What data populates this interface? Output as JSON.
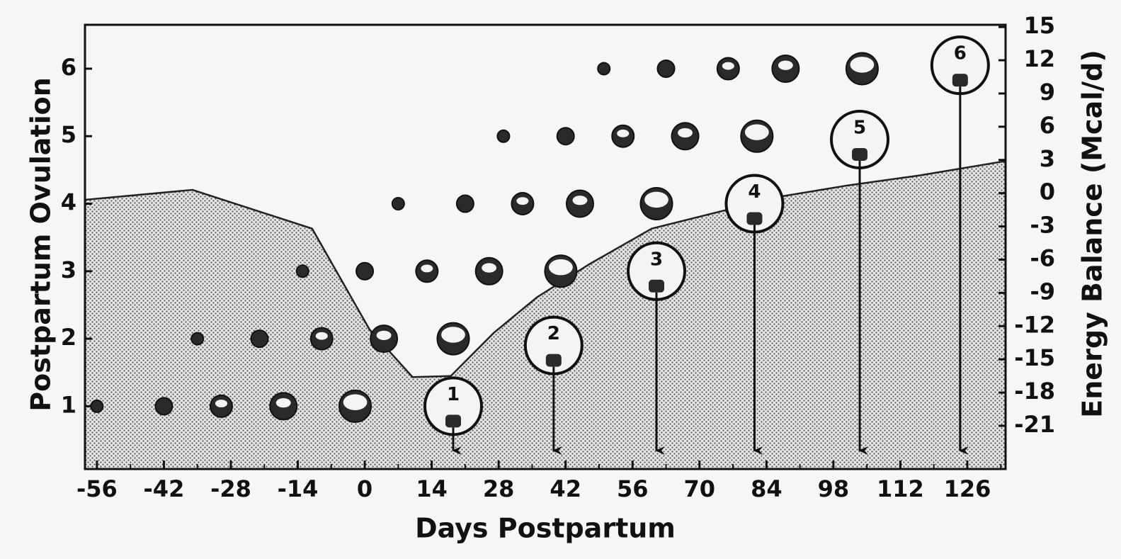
{
  "chart_data": {
    "type": "scatter",
    "x_label": "Days Postpartum",
    "y_label": "Postpartum Ovulation",
    "y2_label": "Energy Balance (Mcal/d)",
    "xlim": [
      -58.5,
      134
    ],
    "xticks": [
      -56,
      -42,
      -28,
      -14,
      0,
      14,
      28,
      42,
      56,
      70,
      84,
      98,
      112,
      126
    ],
    "ylim": [
      0.07,
      6.65
    ],
    "yticks": [
      1,
      2,
      3,
      4,
      5,
      6
    ],
    "y2lim": [
      -24.9,
      15.2
    ],
    "y2ticks": [
      15,
      12,
      9,
      6,
      3,
      0,
      -3,
      -6,
      -9,
      -12,
      -15,
      -18,
      -21
    ],
    "energy_balance": {
      "axis": "y2",
      "color": "#222222",
      "x": [
        -58.5,
        -36,
        -11,
        1,
        10,
        18,
        27,
        36,
        47,
        60,
        72,
        87,
        101,
        116,
        134
      ],
      "values": [
        -0.6,
        0.3,
        -3.2,
        -12.3,
        -16.6,
        -16.5,
        -12.6,
        -9.4,
        -6.4,
        -3.2,
        -1.9,
        -0.3,
        0.7,
        1.6,
        2.9
      ]
    },
    "waves": [
      {
        "level": 1,
        "x": [
          -56,
          -42,
          -30,
          -17,
          -2
        ],
        "sizes": [
          1,
          2,
          3,
          4,
          5
        ]
      },
      {
        "level": 2,
        "x": [
          -35,
          -22,
          -9,
          4,
          18.5
        ],
        "sizes": [
          1,
          2,
          3,
          4,
          5
        ]
      },
      {
        "level": 3,
        "x": [
          -13,
          0,
          13,
          26,
          41
        ],
        "sizes": [
          1,
          2,
          3,
          4,
          5
        ]
      },
      {
        "level": 4,
        "x": [
          7,
          21,
          33,
          45,
          61
        ],
        "sizes": [
          1,
          2,
          3,
          4,
          5
        ]
      },
      {
        "level": 5,
        "x": [
          29,
          42,
          54,
          67,
          82
        ],
        "sizes": [
          1,
          2,
          3,
          4,
          5
        ]
      },
      {
        "level": 6,
        "x": [
          50,
          63,
          76,
          88,
          104
        ],
        "sizes": [
          1,
          2,
          3,
          4,
          5
        ]
      }
    ],
    "ovulations": [
      {
        "label": "1",
        "x": 18.5,
        "y": 1
      },
      {
        "label": "2",
        "x": 39.5,
        "y": 1.9
      },
      {
        "label": "3",
        "x": 61,
        "y": 3
      },
      {
        "label": "4",
        "x": 81.5,
        "y": 4
      },
      {
        "label": "5",
        "x": 103.5,
        "y": 4.95
      },
      {
        "label": "6",
        "x": 124.5,
        "y": 6.05
      }
    ]
  }
}
